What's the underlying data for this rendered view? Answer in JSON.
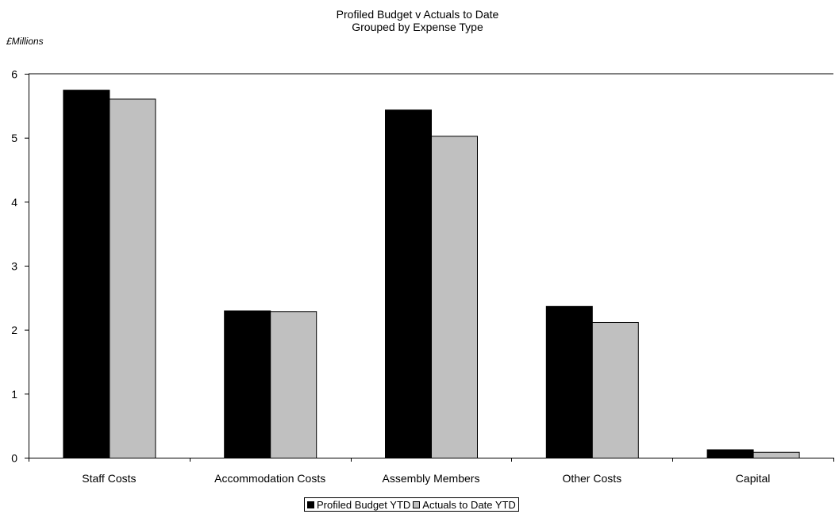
{
  "chart_data": {
    "type": "bar",
    "title": "Profiled Budget v Actuals to Date",
    "subtitle": "Grouped by Expense Type",
    "ylabel": "£Millions",
    "xlabel": "",
    "ylim": [
      0,
      6
    ],
    "yticks": [
      0,
      1,
      2,
      3,
      4,
      5,
      6
    ],
    "categories": [
      "Staff Costs",
      "Accommodation Costs",
      "Assembly Members",
      "Other Costs",
      "Capital"
    ],
    "series": [
      {
        "name": "Profiled Budget YTD",
        "color": "#000000",
        "values": [
          5.75,
          2.3,
          5.44,
          2.37,
          0.13
        ]
      },
      {
        "name": "Actuals to Date YTD",
        "color": "#c0c0c0",
        "values": [
          5.61,
          2.29,
          5.03,
          2.12,
          0.09
        ]
      }
    ],
    "grid": false,
    "legend_position": "bottom"
  }
}
